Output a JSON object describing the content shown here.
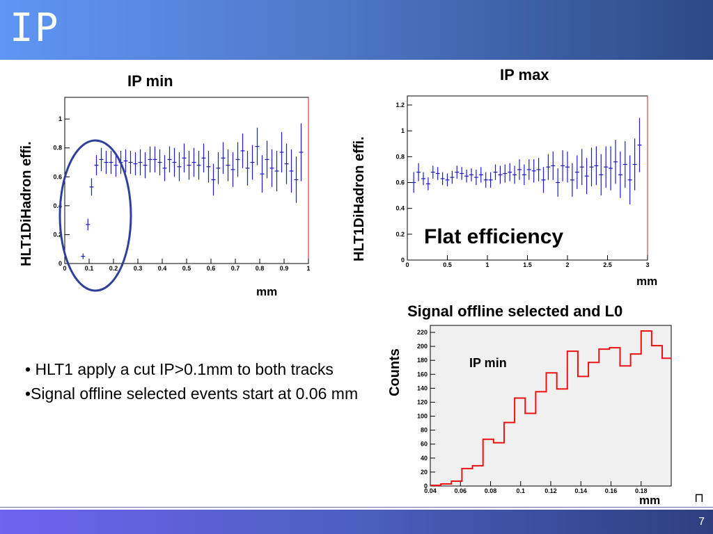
{
  "slide": {
    "title": "IP",
    "page_number": "7",
    "bullets": [
      "• HLT1 apply  a cut IP>0.1mm to both tracks",
      "•Signal offline selected events start at 0.06 mm"
    ],
    "colors": {
      "header": "#4f79c8",
      "footer": "#4b5fbf",
      "data_marker": "#1a1ad0",
      "histogram": "#ee1111",
      "circle": "#2f3f9a"
    }
  },
  "chart_data": [
    {
      "type": "scatter",
      "title": "IP min",
      "xlabel": "mm",
      "ylabel": "HLT1DiHadron effi.",
      "xlim": [
        0,
        1
      ],
      "ylim": [
        0,
        1.15
      ],
      "xticks": [
        "0",
        "0.1",
        "0.2",
        "0.3",
        "0.4",
        "0.5",
        "0.6",
        "0.7",
        "0.8",
        "0.9",
        "1"
      ],
      "yticks": [
        "0",
        "0.2",
        "0.4",
        "0.6",
        "0.8",
        "1"
      ],
      "ytick_values": [
        0,
        0.2,
        0.4,
        0.6,
        0.8,
        1
      ],
      "points": [
        {
          "x": 0.075,
          "y": 0.05,
          "err": 0.02
        },
        {
          "x": 0.095,
          "y": 0.27,
          "err": 0.04
        },
        {
          "x": 0.11,
          "y": 0.53,
          "err": 0.06
        },
        {
          "x": 0.13,
          "y": 0.68,
          "err": 0.07
        },
        {
          "x": 0.15,
          "y": 0.72,
          "err": 0.08
        },
        {
          "x": 0.17,
          "y": 0.7,
          "err": 0.08
        },
        {
          "x": 0.19,
          "y": 0.7,
          "err": 0.08
        },
        {
          "x": 0.21,
          "y": 0.68,
          "err": 0.08
        },
        {
          "x": 0.23,
          "y": 0.7,
          "err": 0.08
        },
        {
          "x": 0.25,
          "y": 0.71,
          "err": 0.08
        },
        {
          "x": 0.27,
          "y": 0.7,
          "err": 0.08
        },
        {
          "x": 0.29,
          "y": 0.69,
          "err": 0.08
        },
        {
          "x": 0.31,
          "y": 0.7,
          "err": 0.09
        },
        {
          "x": 0.33,
          "y": 0.68,
          "err": 0.09
        },
        {
          "x": 0.35,
          "y": 0.72,
          "err": 0.09
        },
        {
          "x": 0.37,
          "y": 0.72,
          "err": 0.09
        },
        {
          "x": 0.39,
          "y": 0.7,
          "err": 0.09
        },
        {
          "x": 0.41,
          "y": 0.66,
          "err": 0.09
        },
        {
          "x": 0.43,
          "y": 0.72,
          "err": 0.09
        },
        {
          "x": 0.45,
          "y": 0.7,
          "err": 0.1
        },
        {
          "x": 0.47,
          "y": 0.67,
          "err": 0.1
        },
        {
          "x": 0.49,
          "y": 0.73,
          "err": 0.1
        },
        {
          "x": 0.51,
          "y": 0.68,
          "err": 0.1
        },
        {
          "x": 0.53,
          "y": 0.7,
          "err": 0.1
        },
        {
          "x": 0.55,
          "y": 0.68,
          "err": 0.1
        },
        {
          "x": 0.57,
          "y": 0.73,
          "err": 0.1
        },
        {
          "x": 0.59,
          "y": 0.67,
          "err": 0.11
        },
        {
          "x": 0.61,
          "y": 0.58,
          "err": 0.11
        },
        {
          "x": 0.63,
          "y": 0.66,
          "err": 0.11
        },
        {
          "x": 0.65,
          "y": 0.73,
          "err": 0.11
        },
        {
          "x": 0.67,
          "y": 0.68,
          "err": 0.11
        },
        {
          "x": 0.69,
          "y": 0.65,
          "err": 0.12
        },
        {
          "x": 0.71,
          "y": 0.72,
          "err": 0.12
        },
        {
          "x": 0.73,
          "y": 0.78,
          "err": 0.12
        },
        {
          "x": 0.75,
          "y": 0.66,
          "err": 0.12
        },
        {
          "x": 0.77,
          "y": 0.7,
          "err": 0.12
        },
        {
          "x": 0.79,
          "y": 0.81,
          "err": 0.13
        },
        {
          "x": 0.81,
          "y": 0.62,
          "err": 0.13
        },
        {
          "x": 0.83,
          "y": 0.72,
          "err": 0.13
        },
        {
          "x": 0.85,
          "y": 0.66,
          "err": 0.13
        },
        {
          "x": 0.87,
          "y": 0.64,
          "err": 0.14
        },
        {
          "x": 0.89,
          "y": 0.77,
          "err": 0.14
        },
        {
          "x": 0.91,
          "y": 0.69,
          "err": 0.14
        },
        {
          "x": 0.93,
          "y": 0.64,
          "err": 0.15
        },
        {
          "x": 0.95,
          "y": 0.58,
          "err": 0.16
        },
        {
          "x": 0.97,
          "y": 0.77,
          "err": 0.2
        }
      ]
    },
    {
      "type": "scatter",
      "title": "IP max",
      "xlabel": "mm",
      "ylabel": "HLT1DiHadron effi.",
      "annotation": "Flat efficiency",
      "xlim": [
        0,
        3
      ],
      "ylim": [
        0,
        1.27
      ],
      "xticks": [
        "0",
        "0.5",
        "1",
        "1.5",
        "2",
        "2.5",
        "3"
      ],
      "yticks": [
        "0",
        "0.2",
        "0.4",
        "0.6",
        "0.8",
        "1",
        "1.2"
      ],
      "ytick_values": [
        0,
        0.2,
        0.4,
        0.6,
        0.8,
        1,
        1.2
      ],
      "points": [
        {
          "x": 0.08,
          "y": 0.6,
          "err": 0.08
        },
        {
          "x": 0.14,
          "y": 0.68,
          "err": 0.07
        },
        {
          "x": 0.2,
          "y": 0.63,
          "err": 0.05
        },
        {
          "x": 0.26,
          "y": 0.59,
          "err": 0.05
        },
        {
          "x": 0.32,
          "y": 0.68,
          "err": 0.05
        },
        {
          "x": 0.38,
          "y": 0.67,
          "err": 0.05
        },
        {
          "x": 0.44,
          "y": 0.63,
          "err": 0.05
        },
        {
          "x": 0.5,
          "y": 0.62,
          "err": 0.05
        },
        {
          "x": 0.56,
          "y": 0.64,
          "err": 0.05
        },
        {
          "x": 0.62,
          "y": 0.68,
          "err": 0.05
        },
        {
          "x": 0.68,
          "y": 0.67,
          "err": 0.05
        },
        {
          "x": 0.74,
          "y": 0.65,
          "err": 0.05
        },
        {
          "x": 0.8,
          "y": 0.66,
          "err": 0.05
        },
        {
          "x": 0.86,
          "y": 0.64,
          "err": 0.06
        },
        {
          "x": 0.92,
          "y": 0.66,
          "err": 0.06
        },
        {
          "x": 0.98,
          "y": 0.62,
          "err": 0.06
        },
        {
          "x": 1.04,
          "y": 0.62,
          "err": 0.06
        },
        {
          "x": 1.1,
          "y": 0.68,
          "err": 0.06
        },
        {
          "x": 1.16,
          "y": 0.66,
          "err": 0.07
        },
        {
          "x": 1.22,
          "y": 0.67,
          "err": 0.07
        },
        {
          "x": 1.28,
          "y": 0.68,
          "err": 0.07
        },
        {
          "x": 1.34,
          "y": 0.66,
          "err": 0.07
        },
        {
          "x": 1.4,
          "y": 0.7,
          "err": 0.08
        },
        {
          "x": 1.46,
          "y": 0.66,
          "err": 0.08
        },
        {
          "x": 1.52,
          "y": 0.7,
          "err": 0.08
        },
        {
          "x": 1.58,
          "y": 0.69,
          "err": 0.09
        },
        {
          "x": 1.64,
          "y": 0.7,
          "err": 0.09
        },
        {
          "x": 1.7,
          "y": 0.62,
          "err": 0.1
        },
        {
          "x": 1.76,
          "y": 0.72,
          "err": 0.1
        },
        {
          "x": 1.82,
          "y": 0.73,
          "err": 0.11
        },
        {
          "x": 1.88,
          "y": 0.6,
          "err": 0.11
        },
        {
          "x": 1.94,
          "y": 0.73,
          "err": 0.12
        },
        {
          "x": 2.0,
          "y": 0.72,
          "err": 0.12
        },
        {
          "x": 2.06,
          "y": 0.62,
          "err": 0.13
        },
        {
          "x": 2.12,
          "y": 0.68,
          "err": 0.13
        },
        {
          "x": 2.18,
          "y": 0.72,
          "err": 0.14
        },
        {
          "x": 2.24,
          "y": 0.65,
          "err": 0.14
        },
        {
          "x": 2.3,
          "y": 0.72,
          "err": 0.15
        },
        {
          "x": 2.36,
          "y": 0.73,
          "err": 0.15
        },
        {
          "x": 2.42,
          "y": 0.66,
          "err": 0.16
        },
        {
          "x": 2.48,
          "y": 0.72,
          "err": 0.16
        },
        {
          "x": 2.54,
          "y": 0.71,
          "err": 0.17
        },
        {
          "x": 2.6,
          "y": 0.76,
          "err": 0.17
        },
        {
          "x": 2.66,
          "y": 0.66,
          "err": 0.18
        },
        {
          "x": 2.72,
          "y": 0.74,
          "err": 0.18
        },
        {
          "x": 2.78,
          "y": 0.62,
          "err": 0.19
        },
        {
          "x": 2.84,
          "y": 0.74,
          "err": 0.2
        },
        {
          "x": 2.9,
          "y": 0.89,
          "err": 0.21
        }
      ]
    },
    {
      "type": "histogram",
      "title": "Signal offline selected and L0",
      "legend": "IP min",
      "xlabel": "mm",
      "ylabel": "Counts",
      "xlim": [
        0.04,
        0.2
      ],
      "ylim": [
        0,
        230
      ],
      "xticks": [
        "0.04",
        "0.06",
        "0.08",
        "0.1",
        "0.12",
        "0.14",
        "0.16",
        "0.18"
      ],
      "xtick_values": [
        0.04,
        0.06,
        0.08,
        0.1,
        0.12,
        0.14,
        0.16,
        0.18
      ],
      "yticks": [
        "0",
        "20",
        "40",
        "60",
        "80",
        "100",
        "120",
        "140",
        "160",
        "180",
        "200",
        "220"
      ],
      "ytick_values": [
        0,
        20,
        40,
        60,
        80,
        100,
        120,
        140,
        160,
        180,
        200,
        220
      ],
      "bin_start": 0.04,
      "bin_width": 0.007,
      "bin_counts": [
        1,
        3,
        7,
        25,
        29,
        67,
        62,
        91,
        126,
        104,
        135,
        162,
        139,
        193,
        157,
        177,
        196,
        198,
        172,
        189,
        222,
        201,
        183
      ]
    }
  ]
}
